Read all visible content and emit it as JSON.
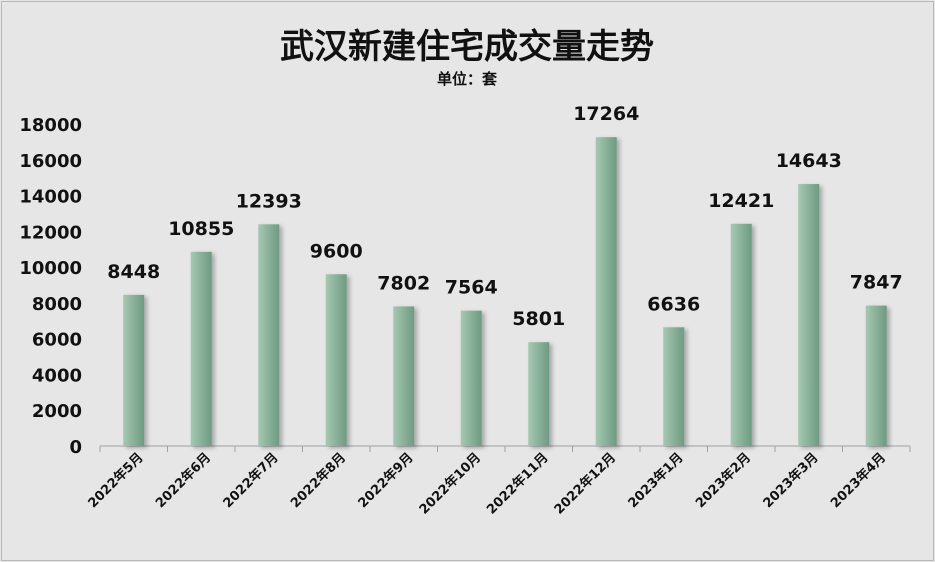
{
  "chart_data": {
    "type": "bar",
    "title": "武汉新建住宅成交量走势",
    "subtitle": "单位：套",
    "categories": [
      "2022年5月",
      "2022年6月",
      "2022年7月",
      "2022年8月",
      "2022年9月",
      "2022年10月",
      "2022年11月",
      "2022年12月",
      "2023年1月",
      "2023年2月",
      "2023年3月",
      "2023年4月"
    ],
    "values": [
      8448,
      10855,
      12393,
      9600,
      7802,
      7564,
      5801,
      17264,
      6636,
      12421,
      14643,
      7847
    ],
    "ylim": [
      0,
      18000
    ],
    "yticks": [
      0,
      2000,
      4000,
      6000,
      8000,
      10000,
      12000,
      14000,
      16000,
      18000
    ],
    "grid": false,
    "data_labels": true,
    "bar_color": "#8cb39c"
  }
}
